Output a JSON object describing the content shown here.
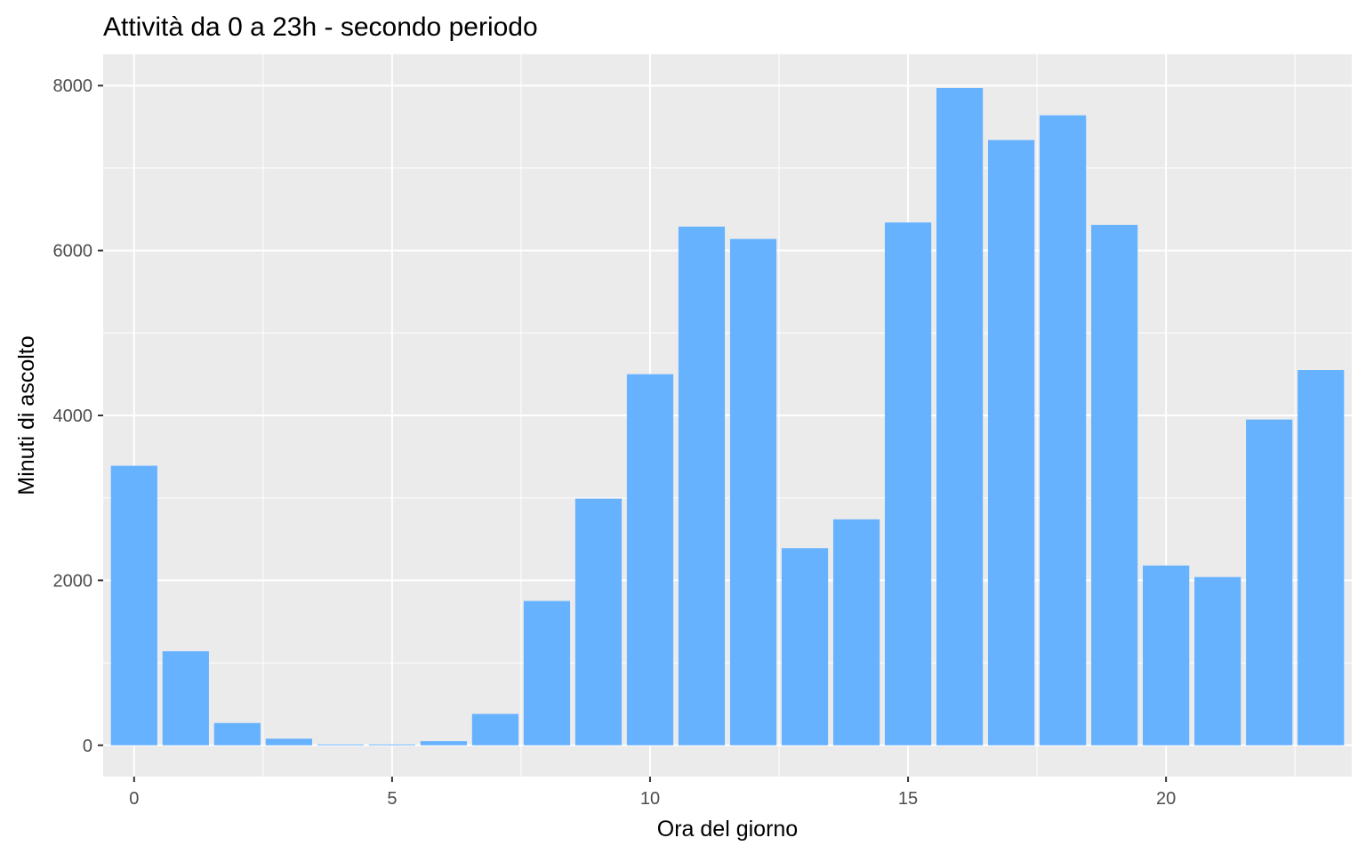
{
  "chart_data": {
    "type": "bar",
    "title": "Attività da 0 a 23h - secondo periodo",
    "xlabel": "Ora del giorno",
    "ylabel": "Minuti di ascolto",
    "x": [
      0,
      1,
      2,
      3,
      4,
      5,
      6,
      7,
      8,
      9,
      10,
      11,
      12,
      13,
      14,
      15,
      16,
      17,
      18,
      19,
      20,
      21,
      22,
      23
    ],
    "values": [
      3390,
      1140,
      270,
      80,
      10,
      10,
      50,
      380,
      1750,
      2990,
      4500,
      6290,
      6140,
      2390,
      2740,
      6340,
      7970,
      7340,
      7640,
      6310,
      2180,
      2040,
      3950,
      4550
    ],
    "xlim": [
      -0.6,
      23.6
    ],
    "ylim": [
      -380,
      8380
    ],
    "x_ticks": [
      0,
      5,
      10,
      15,
      20
    ],
    "x_tick_labels": [
      "0",
      "5",
      "10",
      "15",
      "20"
    ],
    "y_ticks": [
      0,
      2000,
      4000,
      6000,
      8000
    ],
    "y_tick_labels": [
      "0",
      "2000",
      "4000",
      "6000",
      "8000"
    ],
    "grid": true,
    "colors": {
      "bar": "#66b2ff",
      "panel": "#ebebeb",
      "grid": "#ffffff",
      "tick_text": "#4d4d4d",
      "axis_text": "#000000"
    }
  }
}
